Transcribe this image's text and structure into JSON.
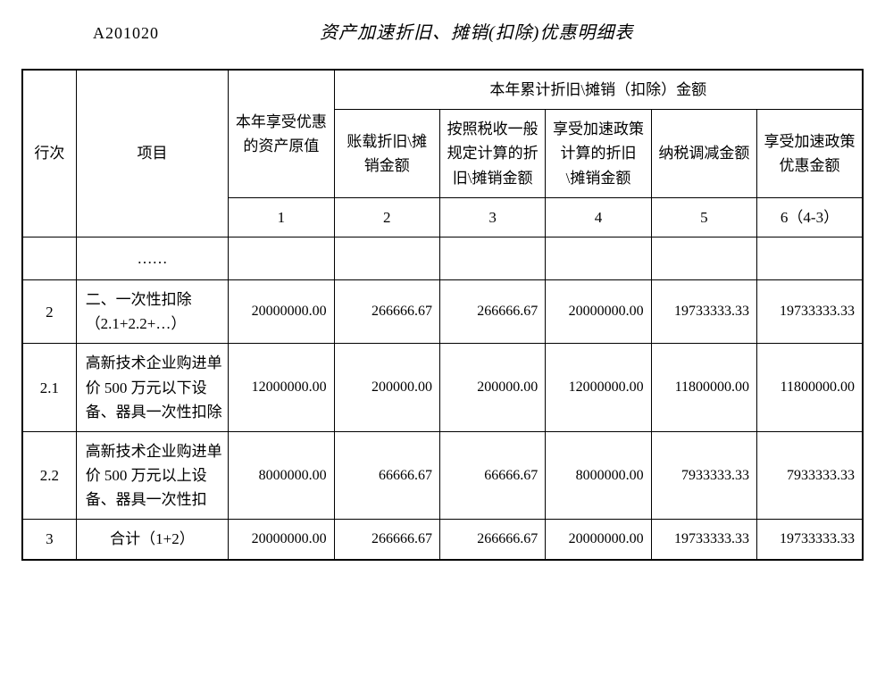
{
  "form_code": "A201020",
  "form_title": "资产加速折旧、摊销(扣除)优惠明细表",
  "header": {
    "row_num": "行次",
    "item": "项目",
    "asset_original_value": "本年享受优惠的资产原值",
    "group_title": "本年累计折旧\\摊销（扣除）金额",
    "col2": "账载折旧\\摊销金额",
    "col3": "按照税收一般规定计算的折旧\\摊销金额",
    "col4": "享受加速政策计算的折旧\\摊销金额",
    "col5": "纳税调减金额",
    "col6": "享受加速政策优惠金额",
    "idx1": "1",
    "idx2": "2",
    "idx3": "3",
    "idx4": "4",
    "idx5": "5",
    "idx6": "6（4-3）"
  },
  "rows": {
    "ellipsis": "……",
    "r2": {
      "num": "2",
      "item": "二、一次性扣除（2.1+2.2+…）",
      "c1": "20000000.00",
      "c2": "266666.67",
      "c3": "266666.67",
      "c4": "20000000.00",
      "c5": "19733333.33",
      "c6": "19733333.33"
    },
    "r21": {
      "num": "2.1",
      "item": "高新技术企业购进单价 500 万元以下设备、器具一次性扣除",
      "c1": "12000000.00",
      "c2": "200000.00",
      "c3": "200000.00",
      "c4": "12000000.00",
      "c5": "11800000.00",
      "c6": "11800000.00"
    },
    "r22": {
      "num": "2.2",
      "item": "高新技术企业购进单价 500 万元以上设备、器具一次性扣",
      "c1": "8000000.00",
      "c2": "66666.67",
      "c3": "66666.67",
      "c4": "8000000.00",
      "c5": "7933333.33",
      "c6": "7933333.33"
    },
    "r3": {
      "num": "3",
      "item": "合计（1+2）",
      "c1": "20000000.00",
      "c2": "266666.67",
      "c3": "266666.67",
      "c4": "20000000.00",
      "c5": "19733333.33",
      "c6": "19733333.33"
    }
  }
}
